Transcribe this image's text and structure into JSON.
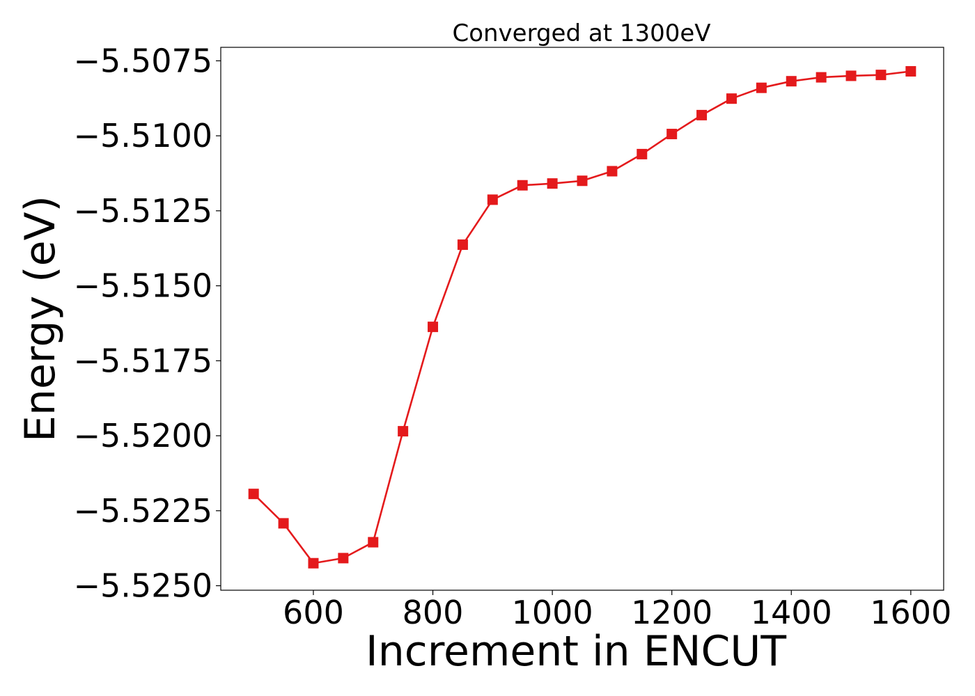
{
  "chart_data": {
    "type": "line",
    "title": "Converged at 1300eV",
    "xlabel": "Increment in ENCUT",
    "ylabel": "Energy (eV)",
    "xlim": [
      445,
      1655
    ],
    "ylim": [
      -5.52515,
      -5.50705
    ],
    "x_ticks": [
      600,
      800,
      1000,
      1200,
      1400,
      1600
    ],
    "y_ticks": [
      -5.525,
      -5.5225,
      -5.52,
      -5.5175,
      -5.515,
      -5.5125,
      -5.51,
      -5.5075
    ],
    "x_tick_labels": [
      "600",
      "800",
      "1000",
      "1200",
      "1400",
      "1600"
    ],
    "y_tick_labels": [
      "−5.5250",
      "−5.5225",
      "−5.5200",
      "−5.5175",
      "−5.5150",
      "−5.5125",
      "−5.5100",
      "−5.5075"
    ],
    "grid": false,
    "series": [
      {
        "marker": "square",
        "color": "#e41a1c",
        "x": [
          500,
          550,
          600,
          650,
          700,
          750,
          800,
          850,
          900,
          950,
          1000,
          1050,
          1100,
          1150,
          1200,
          1250,
          1300,
          1350,
          1400,
          1450,
          1500,
          1550,
          1600
        ],
        "y": [
          -5.52194,
          -5.52292,
          -5.52425,
          -5.52408,
          -5.52355,
          -5.51985,
          -5.51637,
          -5.51363,
          -5.51213,
          -5.51165,
          -5.51159,
          -5.5115,
          -5.51118,
          -5.51061,
          -5.50994,
          -5.50931,
          -5.50876,
          -5.5084,
          -5.50818,
          -5.50805,
          -5.508,
          -5.50797,
          -5.50785
        ]
      }
    ]
  }
}
